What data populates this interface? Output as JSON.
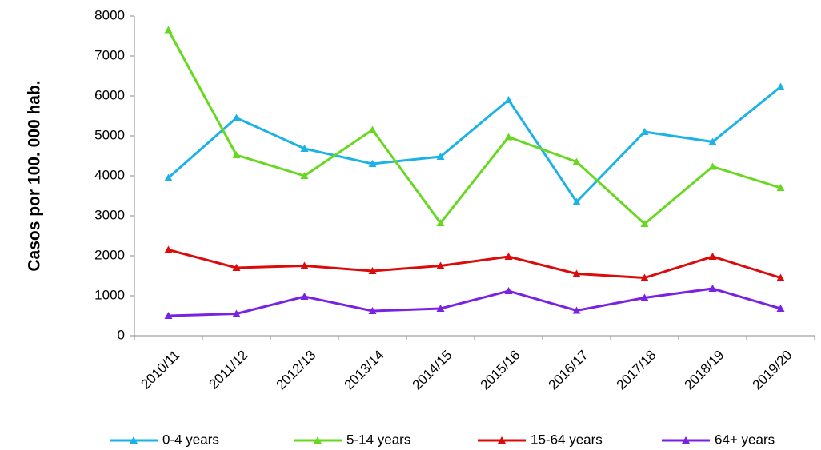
{
  "chart_data": {
    "type": "line",
    "ylabel": "Casos por 100. 000 hab.",
    "categories": [
      "2010/11",
      "2011/12",
      "2012/13",
      "2013/14",
      "2014/15",
      "2015/16",
      "2016/17",
      "2017/18",
      "2018/19",
      "2019/20"
    ],
    "series": [
      {
        "name": "0-4 years",
        "color": "#1ab3e8",
        "values": [
          3950,
          5450,
          4680,
          4300,
          4480,
          5900,
          3350,
          5100,
          4850,
          6230
        ]
      },
      {
        "name": "5-14 years",
        "color": "#66d91f",
        "values": [
          7650,
          4520,
          4000,
          5150,
          2820,
          4970,
          4350,
          2800,
          4230,
          3700
        ]
      },
      {
        "name": "15-64 years",
        "color": "#dd0a0a",
        "values": [
          2150,
          1700,
          1750,
          1620,
          1750,
          1980,
          1550,
          1450,
          1980,
          1450
        ]
      },
      {
        "name": "64+ years",
        "color": "#7a22e3",
        "values": [
          500,
          550,
          980,
          620,
          680,
          1120,
          630,
          950,
          1180,
          680
        ]
      }
    ],
    "ylim": [
      0,
      8000
    ],
    "yticks": [
      0,
      1000,
      2000,
      3000,
      4000,
      5000,
      6000,
      7000,
      8000
    ],
    "grid": false,
    "legend": "bottom"
  }
}
